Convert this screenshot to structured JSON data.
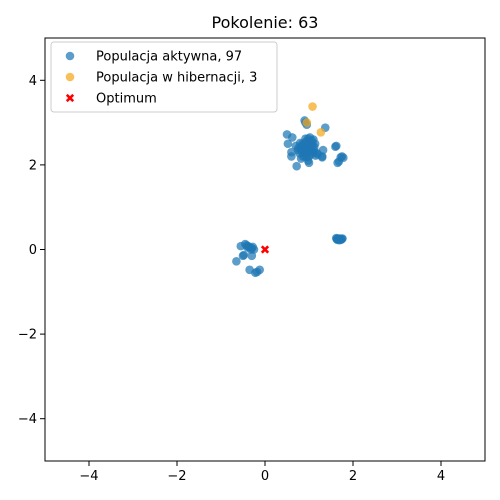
{
  "chart_data": {
    "type": "scatter",
    "title": "Pokolenie: 63",
    "xlabel": "",
    "ylabel": "",
    "xlim": [
      -5,
      5
    ],
    "ylim": [
      -5,
      5
    ],
    "xticks": [
      -4,
      -2,
      0,
      2,
      4
    ],
    "yticks": [
      -4,
      -2,
      0,
      2,
      4
    ],
    "xtick_labels": [
      "−4",
      "−2",
      "0",
      "2",
      "4"
    ],
    "ytick_labels": [
      "−4",
      "−2",
      "0",
      "2",
      "4"
    ],
    "grid": false,
    "legend_position": "top-left",
    "series": [
      {
        "name": "Populacja aktywna, 97",
        "marker": "circle",
        "color": "#1f77b4",
        "points": [
          [
            0.5,
            2.72
          ],
          [
            0.62,
            2.65
          ],
          [
            0.52,
            2.5
          ],
          [
            0.6,
            2.3
          ],
          [
            0.6,
            2.2
          ],
          [
            0.7,
            2.45
          ],
          [
            0.75,
            2.35
          ],
          [
            0.72,
            1.97
          ],
          [
            0.78,
            2.28
          ],
          [
            0.8,
            2.4
          ],
          [
            0.82,
            2.15
          ],
          [
            0.85,
            2.5
          ],
          [
            0.88,
            2.35
          ],
          [
            0.9,
            2.2
          ],
          [
            0.9,
            3.05
          ],
          [
            0.92,
            3.0
          ],
          [
            0.95,
            2.95
          ],
          [
            0.95,
            2.42
          ],
          [
            0.97,
            2.3
          ],
          [
            0.98,
            2.1
          ],
          [
            1.0,
            2.55
          ],
          [
            1.0,
            2.4
          ],
          [
            1.02,
            2.65
          ],
          [
            1.05,
            2.38
          ],
          [
            1.05,
            2.25
          ],
          [
            1.08,
            2.5
          ],
          [
            1.1,
            2.6
          ],
          [
            1.12,
            2.3
          ],
          [
            1.15,
            2.22
          ],
          [
            1.2,
            2.25
          ],
          [
            1.3,
            2.18
          ],
          [
            1.32,
            2.35
          ],
          [
            1.37,
            2.88
          ],
          [
            1.3,
            2.2
          ],
          [
            1.0,
            2.05
          ],
          [
            0.85,
            2.45
          ],
          [
            0.93,
            2.55
          ],
          [
            1.07,
            2.45
          ],
          [
            0.98,
            2.62
          ],
          [
            0.88,
            2.28
          ],
          [
            1.1,
            2.35
          ],
          [
            0.95,
            2.18
          ],
          [
            1.62,
            2.45
          ],
          [
            1.6,
            2.43
          ],
          [
            1.65,
            2.05
          ],
          [
            1.68,
            2.08
          ],
          [
            1.72,
            2.18
          ],
          [
            1.75,
            2.2
          ],
          [
            1.78,
            2.17
          ],
          [
            1.62,
            0.27
          ],
          [
            1.65,
            0.25
          ],
          [
            1.68,
            0.24
          ],
          [
            1.7,
            0.26
          ],
          [
            1.72,
            0.25
          ],
          [
            1.75,
            0.25
          ],
          [
            1.64,
            0.23
          ],
          [
            1.66,
            0.26
          ],
          [
            1.7,
            0.24
          ],
          [
            1.73,
            0.23
          ],
          [
            1.76,
            0.26
          ],
          [
            1.63,
            0.25
          ],
          [
            1.69,
            0.22
          ],
          [
            -0.55,
            0.08
          ],
          [
            -0.45,
            0.13
          ],
          [
            -0.42,
            0.1
          ],
          [
            -0.38,
            0.08
          ],
          [
            -0.35,
            0.05
          ],
          [
            -0.3,
            0.03
          ],
          [
            -0.25,
            0.0
          ],
          [
            -0.5,
            -0.15
          ],
          [
            -0.48,
            -0.13
          ],
          [
            -0.3,
            -0.15
          ],
          [
            -0.65,
            -0.28
          ],
          [
            -0.35,
            -0.48
          ],
          [
            -0.22,
            -0.55
          ],
          [
            -0.18,
            -0.53
          ],
          [
            -0.12,
            -0.48
          ],
          [
            -0.4,
            0.05
          ],
          [
            -0.32,
            0.0
          ],
          [
            -0.28,
            0.06
          ],
          [
            0.95,
            2.32
          ],
          [
            1.03,
            2.48
          ],
          [
            0.8,
            2.52
          ],
          [
            0.9,
            2.4
          ],
          [
            1.12,
            2.42
          ],
          [
            0.86,
            2.2
          ],
          [
            0.97,
            2.5
          ],
          [
            1.04,
            2.3
          ],
          [
            0.76,
            2.4
          ],
          [
            1.18,
            2.28
          ],
          [
            1.0,
            2.2
          ],
          [
            0.92,
            2.62
          ],
          [
            1.06,
            2.58
          ],
          [
            0.83,
            2.33
          ],
          [
            1.14,
            2.5
          ],
          [
            0.99,
            2.35
          ],
          [
            0.89,
            2.5
          ]
        ]
      },
      {
        "name": "Populacja w hibernacji, 3",
        "marker": "circle",
        "color": "#f5a81c",
        "points": [
          [
            1.08,
            3.38
          ],
          [
            0.95,
            3.0
          ],
          [
            1.27,
            2.77
          ]
        ]
      },
      {
        "name": "Optimum",
        "marker": "x",
        "color": "#ff0000",
        "points": [
          [
            0,
            0
          ]
        ]
      }
    ]
  }
}
